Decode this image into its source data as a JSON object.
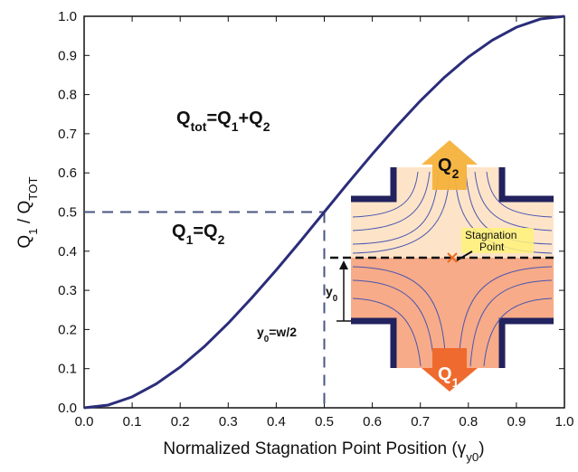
{
  "chart_data": {
    "type": "line",
    "xlabel": [
      {
        "text": "Normalized Stagnation Point Position ("
      },
      {
        "text": "γ"
      },
      {
        "text": "y0",
        "sub": true
      },
      {
        "text": ")"
      }
    ],
    "ylabel": [
      {
        "text": "Q"
      },
      {
        "text": "1",
        "sub": true
      },
      {
        "text": " / Q"
      },
      {
        "text": "TOT",
        "sub": true
      }
    ],
    "x": [
      0,
      0.05,
      0.1,
      0.15,
      0.2,
      0.25,
      0.3,
      0.35,
      0.4,
      0.45,
      0.5,
      0.55,
      0.6,
      0.65,
      0.7,
      0.75,
      0.8,
      0.85,
      0.9,
      0.95,
      1.0
    ],
    "series": [
      {
        "color": "#2b2d7a",
        "values": [
          0,
          0.007,
          0.028,
          0.061,
          0.104,
          0.156,
          0.216,
          0.282,
          0.352,
          0.425,
          0.5,
          0.575,
          0.648,
          0.718,
          0.784,
          0.844,
          0.896,
          0.939,
          0.972,
          0.993,
          1.0
        ]
      }
    ],
    "reference_point": {
      "x": 0.5,
      "y": 0.5,
      "color": "#4a5580"
    },
    "xlim": [
      0,
      1
    ],
    "ylim": [
      0,
      1
    ],
    "xticks": [
      {
        "value": 0,
        "label": "0.0"
      },
      0.1,
      0.2,
      0.3,
      0.4,
      0.5,
      0.6,
      0.7,
      0.8,
      0.9,
      {
        "value": 1,
        "label": "1.0"
      }
    ],
    "yticks": [
      {
        "value": 0,
        "label": "0.0"
      },
      0.1,
      0.2,
      0.3,
      0.4,
      0.5,
      0.6,
      0.7,
      0.8,
      0.9,
      {
        "value": 1,
        "label": "1.0"
      }
    ],
    "annotations": [
      [
        {
          "text": "Q"
        },
        {
          "text": "tot",
          "sub": true
        },
        {
          "text": "=Q"
        },
        {
          "text": "1",
          "sub": true
        },
        {
          "text": "+Q"
        },
        {
          "text": "2",
          "sub": true
        }
      ],
      [
        {
          "text": "Q"
        },
        {
          "text": "1",
          "sub": true
        },
        {
          "text": "=Q"
        },
        {
          "text": "2",
          "sub": true
        }
      ],
      [
        {
          "text": "Q"
        },
        {
          "text": "2",
          "sub": true
        }
      ],
      [
        {
          "text": "Stagnation"
        }
      ],
      [
        {
          "text": "Point"
        }
      ],
      [
        {
          "text": "y"
        },
        {
          "text": "0",
          "sub": true
        }
      ],
      [
        {
          "text": "y"
        },
        {
          "text": "0",
          "sub": true
        },
        {
          "text": "=w/2"
        }
      ],
      [
        {
          "text": "Q"
        },
        {
          "text": "1",
          "sub": true
        }
      ]
    ]
  }
}
